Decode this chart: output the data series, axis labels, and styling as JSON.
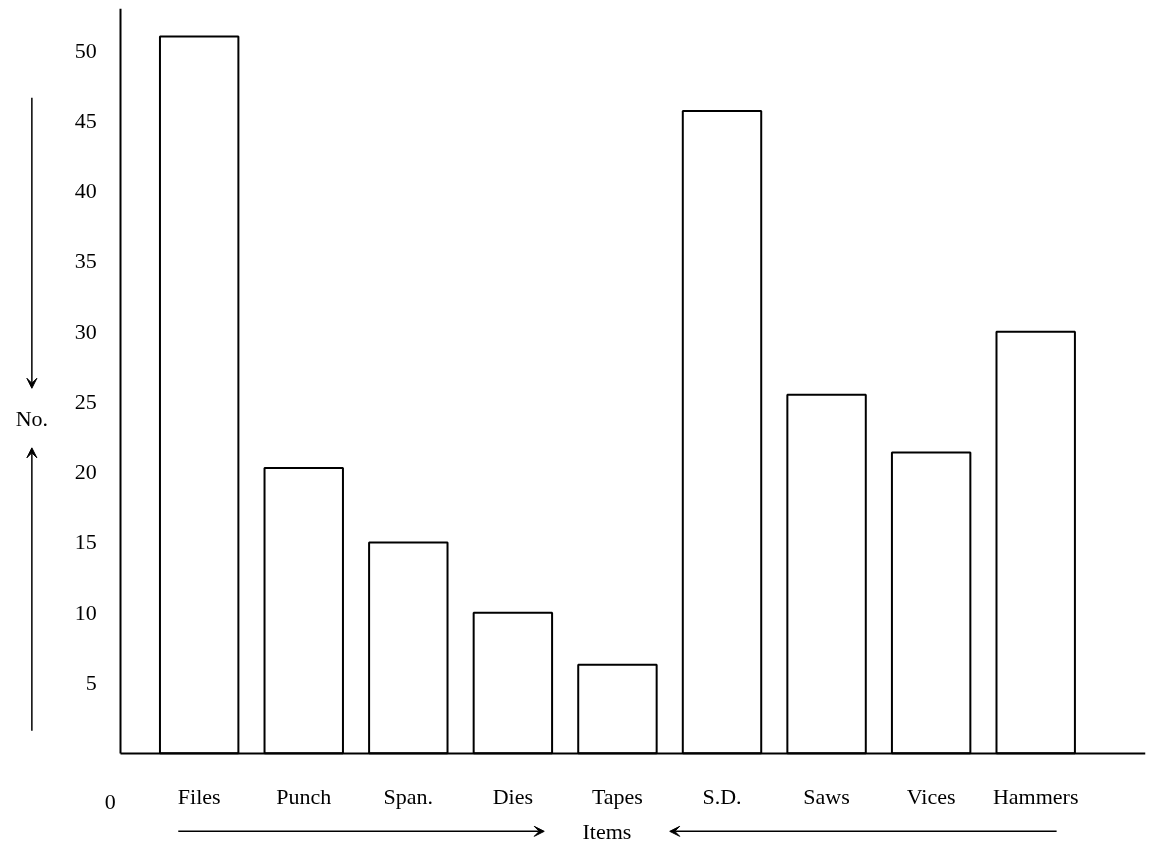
{
  "chart_data": {
    "type": "bar",
    "categories": [
      "Files",
      "Punch",
      "Span.",
      "Dies",
      "Tapes",
      "S.D.",
      "Saws",
      "Vices",
      "Hammers"
    ],
    "values": [
      51,
      20.3,
      15,
      10,
      6.3,
      45.7,
      25.5,
      21.4,
      30
    ],
    "color": "#ffffff",
    "xlabel": "Items",
    "ylabel": "No.",
    "ylim": [
      0,
      53
    ],
    "yticks": [
      5,
      10,
      15,
      20,
      25,
      30,
      35,
      40,
      45,
      50
    ],
    "annotations": [
      "0"
    ],
    "grid": false
  }
}
